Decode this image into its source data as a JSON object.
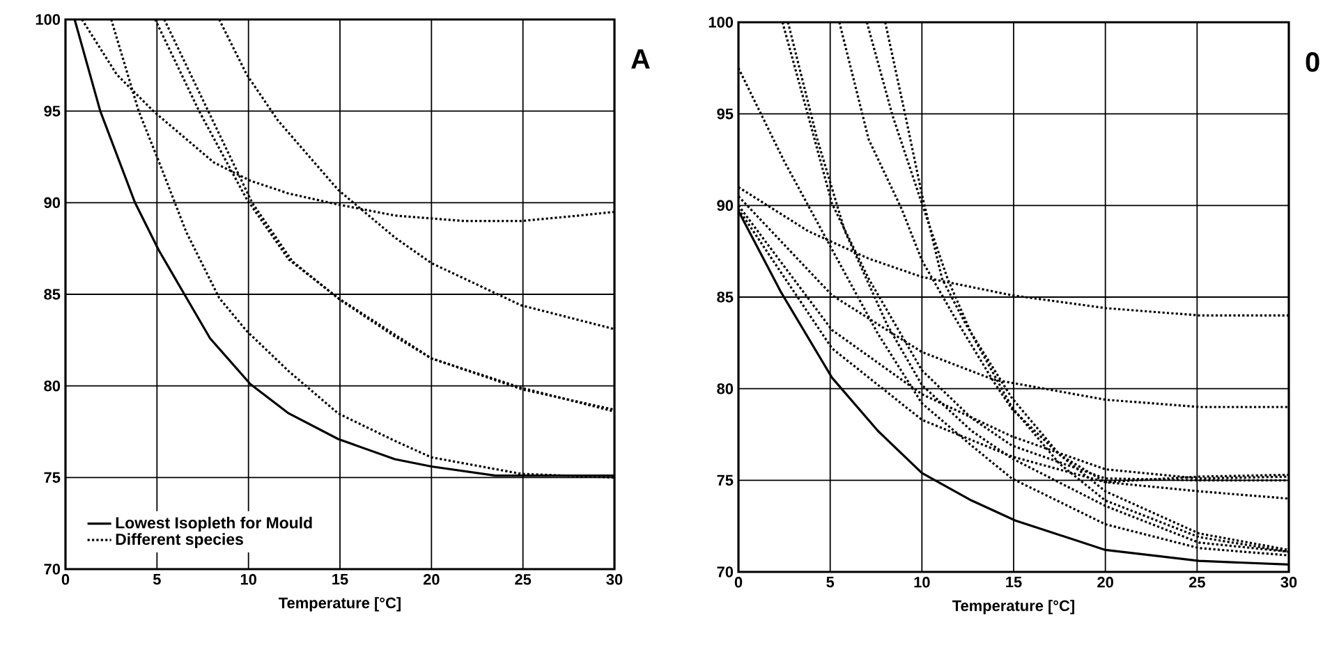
{
  "chart_data": [
    {
      "type": "line",
      "title": "A",
      "xlabel": "Temperature [°C]",
      "xlim": [
        0,
        30
      ],
      "ylim": [
        70,
        100
      ],
      "xticks": [
        0,
        5,
        10,
        15,
        20,
        25,
        30
      ],
      "yticks": [
        70,
        75,
        80,
        85,
        90,
        95,
        100
      ],
      "grid": true,
      "legend": "bottom left",
      "series": [
        {
          "name": "Lowest Isopleth for Mould",
          "color": "#000000",
          "line_style": "solid",
          "x": [
            0.5,
            1.9,
            3.8,
            5.1,
            7.9,
            10.1,
            12.2,
            14.9,
            18,
            20,
            23.5,
            30
          ],
          "values": [
            100,
            95,
            90,
            87.4,
            82.6,
            80.1,
            78.5,
            77.1,
            76,
            75.6,
            75.1,
            75.1
          ]
        },
        {
          "name": "Different species",
          "color": "#000000",
          "line_style": "dotted",
          "x": [
            2.5,
            4,
            5.2,
            6.6,
            8.4,
            9.9,
            12.2,
            14.9,
            18,
            20,
            24.9,
            30
          ],
          "values": [
            100,
            95,
            92,
            88.4,
            84.8,
            83,
            80.8,
            78.5,
            77,
            76.1,
            75.2,
            75
          ]
        },
        {
          "color": "#000000",
          "line_style": "dotted",
          "x": [
            0.9,
            2.8,
            4.8,
            8.1,
            10.1,
            12.2,
            14.9,
            18,
            21.8,
            24.9,
            28.1,
            30
          ],
          "values": [
            100,
            97,
            95,
            92.2,
            91.2,
            90.5,
            89.9,
            89.3,
            89,
            89,
            89.3,
            89.5
          ]
        },
        {
          "color": "#000000",
          "line_style": "dotted",
          "x": [
            4.9,
            7.3,
            9.9,
            12.2,
            14.9,
            18,
            20,
            24.9,
            30
          ],
          "values": [
            100,
            95,
            90.2,
            86.9,
            84.8,
            82.8,
            81.5,
            79.9,
            78.6
          ]
        },
        {
          "color": "#000000",
          "line_style": "dotted",
          "x": [
            5.4,
            7.8,
            10.2,
            12.4,
            15,
            18,
            20,
            25,
            30
          ],
          "values": [
            100,
            95,
            90,
            86.8,
            84.7,
            82.7,
            81.5,
            79.8,
            78.7
          ]
        },
        {
          "color": "#000000",
          "line_style": "dotted",
          "x": [
            8.4,
            9.9,
            11.6,
            14.9,
            18,
            20,
            24.9,
            30
          ],
          "values": [
            100,
            97,
            94.5,
            90.7,
            88.1,
            86.7,
            84.4,
            83.1
          ]
        }
      ]
    },
    {
      "type": "line",
      "title": "0",
      "xlabel": "Temperature [°C]",
      "xlim": [
        0,
        30
      ],
      "ylim": [
        70,
        100
      ],
      "xticks": [
        0,
        5,
        10,
        15,
        20,
        25,
        30
      ],
      "yticks": [
        70,
        75,
        80,
        85,
        90,
        95,
        100
      ],
      "grid": true,
      "series": [
        {
          "color": "#000000",
          "line_style": "solid",
          "x": [
            0,
            2.3,
            5.1,
            7.6,
            10,
            12.7,
            15.1,
            20,
            25.1,
            30
          ],
          "values": [
            89.7,
            85.3,
            80.6,
            77.7,
            75.4,
            73.9,
            72.8,
            71.2,
            70.6,
            70.4
          ]
        },
        {
          "color": "#000000",
          "line_style": "dotted",
          "x": [
            0,
            3.8,
            7.1,
            10,
            14.9,
            20,
            25.1,
            30
          ],
          "values": [
            91,
            88.6,
            87.1,
            86.1,
            85.1,
            84.4,
            84,
            84
          ]
        },
        {
          "color": "#000000",
          "line_style": "dotted",
          "x": [
            0,
            5.1,
            10,
            13.9,
            20,
            25.1,
            30
          ],
          "values": [
            90.5,
            85.1,
            82,
            80.5,
            79.4,
            79,
            79
          ]
        },
        {
          "color": "#000000",
          "line_style": "dotted",
          "x": [
            0,
            5.1,
            10,
            14.9,
            20,
            25.1,
            30
          ],
          "values": [
            90,
            83.2,
            79.7,
            77.4,
            75.6,
            75.1,
            75.2
          ]
        },
        {
          "color": "#000000",
          "line_style": "dotted",
          "x": [
            0,
            5.1,
            10,
            14.9,
            20,
            25.1,
            30
          ],
          "values": [
            89.8,
            82.2,
            78.3,
            76.3,
            74.9,
            74.4,
            74
          ]
        },
        {
          "color": "#000000",
          "line_style": "dotted",
          "x": [
            0,
            2.5,
            5.1,
            7.6,
            10,
            12.7,
            14.9,
            20,
            25.1,
            30
          ],
          "values": [
            97.5,
            92.4,
            87.6,
            83,
            79.2,
            76.9,
            75.1,
            72.6,
            71.3,
            70.9
          ]
        },
        {
          "color": "#000000",
          "line_style": "dotted",
          "x": [
            2.4,
            3.8,
            5.1,
            7.1,
            10,
            12.7,
            14.9,
            20,
            25.1,
            30
          ],
          "values": [
            100,
            94.9,
            90.1,
            86,
            81,
            78.4,
            76.9,
            75.1,
            75,
            75
          ]
        },
        {
          "color": "#000000",
          "line_style": "dotted",
          "x": [
            2.7,
            4.3,
            5.8,
            8.1,
            10,
            12.7,
            14.9,
            20,
            25.1,
            30
          ],
          "values": [
            100,
            93.6,
            88.6,
            83.5,
            80.2,
            77.7,
            76.2,
            73.6,
            71.6,
            71.1
          ]
        },
        {
          "color": "#000000",
          "line_style": "dotted",
          "x": [
            5.5,
            7.1,
            8.9,
            10,
            11.9,
            13.9,
            14.9,
            17.5,
            20,
            25.1,
            30
          ],
          "values": [
            100,
            93.6,
            89.8,
            87,
            83.7,
            80.4,
            78.9,
            76.4,
            74.9,
            75.2,
            75.3
          ]
        },
        {
          "color": "#000000",
          "line_style": "dotted",
          "x": [
            7,
            8.4,
            10,
            11.4,
            12.7,
            14.9,
            17.5,
            20,
            25.1,
            30
          ],
          "values": [
            100,
            94.9,
            90.1,
            86,
            83,
            79,
            75.9,
            73.9,
            71.9,
            71.1
          ]
        },
        {
          "color": "#000000",
          "line_style": "dotted",
          "x": [
            8,
            9.1,
            10,
            11.1,
            12.4,
            14.9,
            17.5,
            20,
            25.1,
            30
          ],
          "values": [
            100,
            94.9,
            90.6,
            86,
            83.5,
            79.5,
            76.4,
            74.4,
            72.1,
            71.2
          ]
        }
      ]
    }
  ]
}
